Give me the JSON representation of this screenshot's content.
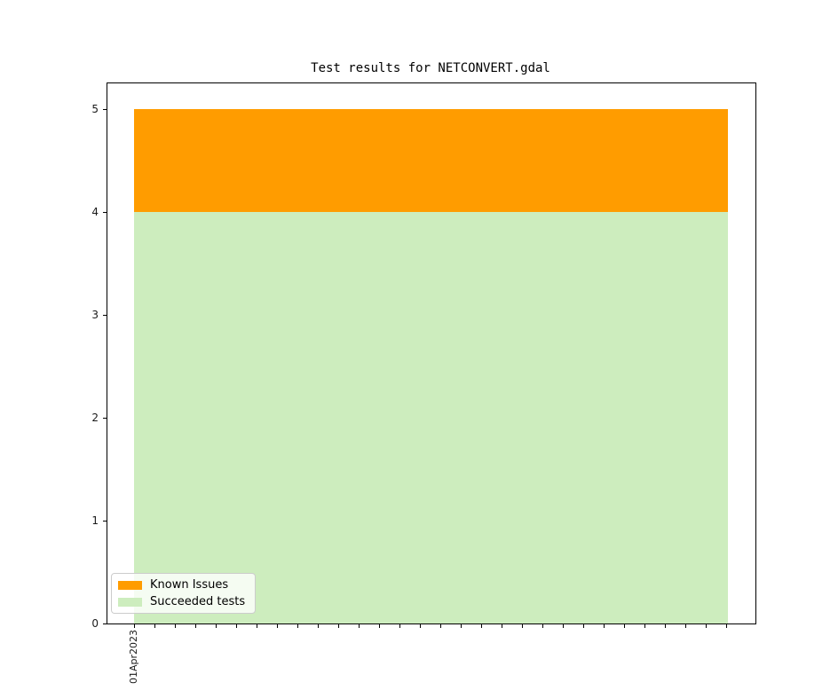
{
  "window": {
    "background": "#ffffff"
  },
  "chart_data": {
    "type": "bar",
    "stacked": true,
    "title": "Test results for NETCONVERT.gdal",
    "categories": [
      "01Apr2023"
    ],
    "series": [
      {
        "name": "Known Issues",
        "values": [
          1
        ],
        "color": "#ff9c00"
      },
      {
        "name": "Succeeded tests",
        "values": [
          4
        ],
        "color": "#cdedbe"
      }
    ],
    "xlabel": "",
    "ylabel": "",
    "ylim": [
      0,
      5.25
    ],
    "yticks": [
      0,
      1,
      2,
      3,
      4,
      5
    ],
    "xticks": {
      "count": 30,
      "labels": {
        "0": "01Apr2023"
      }
    },
    "legend": {
      "position": "lower-left",
      "entries": [
        "Known Issues",
        "Succeeded tests"
      ]
    },
    "grid": false,
    "axis_color": "#000000"
  }
}
